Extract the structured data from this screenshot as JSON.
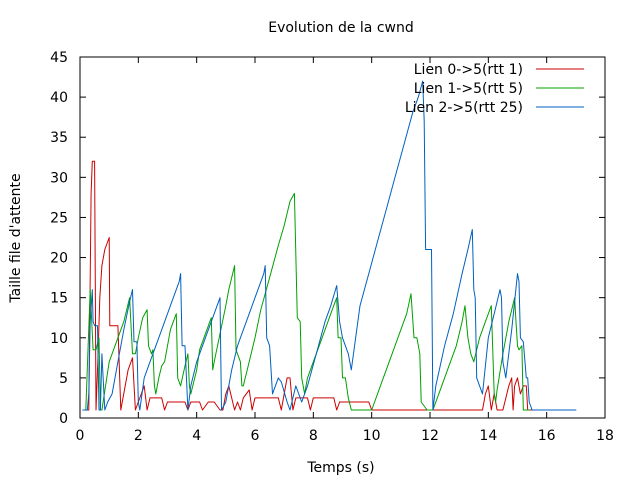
{
  "chart_data": {
    "type": "line",
    "title": "Evolution de la cwnd",
    "xlabel": "Temps (s)",
    "ylabel": "Taille file d'attente",
    "xlim": [
      0,
      18
    ],
    "ylim": [
      0,
      45
    ],
    "xticks": [
      0,
      2,
      4,
      6,
      8,
      10,
      12,
      14,
      16,
      18
    ],
    "yticks": [
      0,
      5,
      10,
      15,
      20,
      25,
      30,
      35,
      40,
      45
    ],
    "grid": false,
    "legend_position": "top-right",
    "series": [
      {
        "name": "Lien 0->5(rtt 1)",
        "color": "#cc0000",
        "points": [
          [
            0.1,
            1
          ],
          [
            0.3,
            1
          ],
          [
            0.38,
            28
          ],
          [
            0.42,
            32
          ],
          [
            0.5,
            32
          ],
          [
            0.55,
            1
          ],
          [
            0.62,
            8
          ],
          [
            0.68,
            15
          ],
          [
            0.75,
            19
          ],
          [
            0.85,
            21
          ],
          [
            1.0,
            22.5
          ],
          [
            1.02,
            11.5
          ],
          [
            1.25,
            11.5
          ],
          [
            1.3,
            11.5
          ],
          [
            1.4,
            1
          ],
          [
            1.55,
            4
          ],
          [
            1.65,
            6
          ],
          [
            1.8,
            7.5
          ],
          [
            1.9,
            1
          ],
          [
            2.0,
            2
          ],
          [
            2.2,
            4
          ],
          [
            2.3,
            1
          ],
          [
            2.4,
            2.5
          ],
          [
            2.8,
            2.5
          ],
          [
            2.9,
            1
          ],
          [
            3.0,
            2
          ],
          [
            3.6,
            2
          ],
          [
            3.7,
            1
          ],
          [
            3.8,
            2
          ],
          [
            4.1,
            2
          ],
          [
            4.2,
            1
          ],
          [
            4.4,
            2
          ],
          [
            4.6,
            2
          ],
          [
            4.8,
            1
          ],
          [
            4.9,
            1
          ],
          [
            5.0,
            3
          ],
          [
            5.1,
            4
          ],
          [
            5.3,
            1
          ],
          [
            5.4,
            2
          ],
          [
            5.5,
            1
          ],
          [
            5.6,
            2.5
          ],
          [
            5.8,
            3.5
          ],
          [
            5.9,
            1
          ],
          [
            6.0,
            2.5
          ],
          [
            6.8,
            2.5
          ],
          [
            6.9,
            1
          ],
          [
            7.0,
            3
          ],
          [
            7.1,
            5
          ],
          [
            7.2,
            5
          ],
          [
            7.3,
            1
          ],
          [
            7.4,
            2.5
          ],
          [
            7.8,
            2.5
          ],
          [
            7.9,
            1
          ],
          [
            8.0,
            2.5
          ],
          [
            8.7,
            2.5
          ],
          [
            8.8,
            1
          ],
          [
            8.9,
            2
          ],
          [
            9.9,
            2
          ],
          [
            10.0,
            1
          ],
          [
            10.4,
            1
          ],
          [
            11.0,
            1
          ],
          [
            12.0,
            1
          ],
          [
            13.8,
            1
          ],
          [
            13.9,
            3
          ],
          [
            14.0,
            4
          ],
          [
            14.1,
            1
          ],
          [
            14.2,
            3
          ],
          [
            14.3,
            1
          ],
          [
            14.5,
            1
          ],
          [
            14.7,
            4
          ],
          [
            14.8,
            5
          ],
          [
            14.85,
            1
          ],
          [
            14.9,
            4
          ],
          [
            15.0,
            5
          ],
          [
            15.1,
            3
          ],
          [
            15.2,
            4
          ],
          [
            15.3,
            4
          ],
          [
            15.35,
            1
          ],
          [
            15.5,
            1
          ],
          [
            17.0,
            1
          ]
        ]
      },
      {
        "name": "Lien 1->5(rtt 5)",
        "color": "#00a000",
        "points": [
          [
            0.1,
            1
          ],
          [
            0.2,
            1
          ],
          [
            0.35,
            16
          ],
          [
            0.45,
            8.5
          ],
          [
            0.55,
            8.5
          ],
          [
            0.65,
            10
          ],
          [
            0.7,
            1
          ],
          [
            0.75,
            1
          ],
          [
            1.0,
            7
          ],
          [
            1.3,
            10
          ],
          [
            1.5,
            12
          ],
          [
            1.7,
            15
          ],
          [
            1.8,
            8
          ],
          [
            1.9,
            8
          ],
          [
            2.0,
            10
          ],
          [
            2.15,
            12.5
          ],
          [
            2.3,
            13.5
          ],
          [
            2.35,
            9
          ],
          [
            2.45,
            8
          ],
          [
            2.5,
            8.5
          ],
          [
            2.55,
            4
          ],
          [
            2.6,
            3
          ],
          [
            2.7,
            5
          ],
          [
            2.8,
            6.5
          ],
          [
            2.9,
            7
          ],
          [
            3.0,
            9
          ],
          [
            3.1,
            11
          ],
          [
            3.2,
            12
          ],
          [
            3.3,
            13
          ],
          [
            3.35,
            5
          ],
          [
            3.45,
            4
          ],
          [
            3.6,
            6.5
          ],
          [
            3.7,
            8
          ],
          [
            3.75,
            4
          ],
          [
            3.8,
            3
          ],
          [
            4.0,
            6
          ],
          [
            4.1,
            8.5
          ],
          [
            4.3,
            10.5
          ],
          [
            4.5,
            12.5
          ],
          [
            4.55,
            6
          ],
          [
            4.6,
            7
          ],
          [
            4.8,
            10.5
          ],
          [
            5.0,
            14
          ],
          [
            5.1,
            16
          ],
          [
            5.3,
            19
          ],
          [
            5.35,
            8.5
          ],
          [
            5.5,
            7
          ],
          [
            5.55,
            4
          ],
          [
            5.6,
            4
          ],
          [
            5.8,
            7
          ],
          [
            6.0,
            10
          ],
          [
            6.2,
            13.5
          ],
          [
            6.5,
            17.5
          ],
          [
            6.8,
            21.5
          ],
          [
            7.0,
            24
          ],
          [
            7.2,
            27
          ],
          [
            7.35,
            28
          ],
          [
            7.45,
            12.5
          ],
          [
            7.55,
            12
          ],
          [
            7.6,
            5
          ],
          [
            7.7,
            3
          ],
          [
            7.8,
            5
          ],
          [
            8.0,
            7
          ],
          [
            8.2,
            9
          ],
          [
            8.4,
            11
          ],
          [
            8.6,
            13
          ],
          [
            8.8,
            15
          ],
          [
            8.85,
            10
          ],
          [
            8.95,
            10
          ],
          [
            9.0,
            5
          ],
          [
            9.1,
            5
          ],
          [
            9.2,
            2.5
          ],
          [
            9.3,
            1
          ],
          [
            10.0,
            1
          ],
          [
            10.3,
            4
          ],
          [
            10.6,
            7
          ],
          [
            10.9,
            10
          ],
          [
            11.2,
            13
          ],
          [
            11.35,
            15.5
          ],
          [
            11.45,
            10
          ],
          [
            11.55,
            10
          ],
          [
            11.65,
            8
          ],
          [
            11.7,
            2
          ],
          [
            11.9,
            1
          ],
          [
            12.1,
            1
          ],
          [
            12.3,
            3
          ],
          [
            12.6,
            6
          ],
          [
            12.9,
            9
          ],
          [
            13.1,
            12
          ],
          [
            13.2,
            14
          ],
          [
            13.3,
            10
          ],
          [
            13.4,
            8
          ],
          [
            13.5,
            7
          ],
          [
            13.7,
            10
          ],
          [
            13.9,
            12
          ],
          [
            14.1,
            14
          ],
          [
            14.2,
            3
          ],
          [
            14.25,
            2
          ],
          [
            14.3,
            3.5
          ],
          [
            14.5,
            8
          ],
          [
            14.7,
            12
          ],
          [
            14.9,
            15
          ],
          [
            14.95,
            12
          ],
          [
            15.0,
            9
          ],
          [
            15.05,
            8.5
          ],
          [
            15.15,
            9
          ],
          [
            15.2,
            1
          ],
          [
            15.4,
            1
          ]
        ]
      },
      {
        "name": "Lien 2->5(rtt 25)",
        "color": "#0060c0",
        "points": [
          [
            0.1,
            1
          ],
          [
            0.25,
            1
          ],
          [
            0.3,
            3
          ],
          [
            0.35,
            12
          ],
          [
            0.42,
            16
          ],
          [
            0.45,
            12
          ],
          [
            0.5,
            11.5
          ],
          [
            0.6,
            11.5
          ],
          [
            0.65,
            1
          ],
          [
            0.7,
            1
          ],
          [
            0.75,
            8
          ],
          [
            0.85,
            1
          ],
          [
            0.95,
            2
          ],
          [
            1.1,
            3
          ],
          [
            1.3,
            7
          ],
          [
            1.5,
            11
          ],
          [
            1.7,
            14.5
          ],
          [
            1.8,
            16
          ],
          [
            1.85,
            9.5
          ],
          [
            1.95,
            9.5
          ],
          [
            2.0,
            2
          ],
          [
            2.05,
            1
          ],
          [
            2.2,
            5
          ],
          [
            2.5,
            8
          ],
          [
            2.8,
            11
          ],
          [
            3.1,
            14
          ],
          [
            3.4,
            17
          ],
          [
            3.45,
            18
          ],
          [
            3.5,
            9
          ],
          [
            3.6,
            9
          ],
          [
            3.7,
            1
          ],
          [
            3.8,
            4
          ],
          [
            4.0,
            7
          ],
          [
            4.3,
            10
          ],
          [
            4.6,
            13
          ],
          [
            4.8,
            15
          ],
          [
            4.85,
            1
          ],
          [
            5.0,
            2
          ],
          [
            5.2,
            6
          ],
          [
            5.4,
            9
          ],
          [
            5.7,
            12
          ],
          [
            6.0,
            15
          ],
          [
            6.3,
            18
          ],
          [
            6.35,
            19
          ],
          [
            6.4,
            10
          ],
          [
            6.5,
            9
          ],
          [
            6.6,
            3
          ],
          [
            6.8,
            5
          ],
          [
            6.9,
            4.5
          ],
          [
            7.1,
            2
          ],
          [
            7.2,
            1
          ],
          [
            7.4,
            4
          ],
          [
            7.6,
            2
          ],
          [
            7.8,
            4
          ],
          [
            8.1,
            8
          ],
          [
            8.4,
            12
          ],
          [
            8.6,
            14
          ],
          [
            8.8,
            16.5
          ],
          [
            8.9,
            12
          ],
          [
            9.0,
            10
          ],
          [
            9.2,
            8
          ],
          [
            9.3,
            6
          ],
          [
            9.6,
            14
          ],
          [
            9.9,
            18
          ],
          [
            10.2,
            22
          ],
          [
            10.5,
            26
          ],
          [
            10.8,
            30
          ],
          [
            11.1,
            34
          ],
          [
            11.4,
            38
          ],
          [
            11.6,
            40
          ],
          [
            11.75,
            42
          ],
          [
            11.8,
            37
          ],
          [
            11.85,
            21
          ],
          [
            12.05,
            21
          ],
          [
            12.1,
            1
          ],
          [
            12.2,
            4
          ],
          [
            12.5,
            9
          ],
          [
            12.8,
            13
          ],
          [
            13.1,
            18
          ],
          [
            13.3,
            21
          ],
          [
            13.45,
            23.5
          ],
          [
            13.5,
            16
          ],
          [
            13.55,
            15
          ],
          [
            13.6,
            5
          ],
          [
            13.7,
            4
          ],
          [
            13.8,
            3
          ],
          [
            14.0,
            10
          ],
          [
            14.2,
            13
          ],
          [
            14.4,
            16
          ],
          [
            14.45,
            15
          ],
          [
            14.5,
            7
          ],
          [
            14.6,
            5
          ],
          [
            14.8,
            11
          ],
          [
            15.0,
            18
          ],
          [
            15.05,
            17
          ],
          [
            15.1,
            10
          ],
          [
            15.2,
            9.5
          ],
          [
            15.3,
            5
          ],
          [
            15.35,
            5
          ],
          [
            15.4,
            2
          ],
          [
            15.5,
            1
          ],
          [
            17.0,
            1
          ]
        ]
      }
    ]
  }
}
